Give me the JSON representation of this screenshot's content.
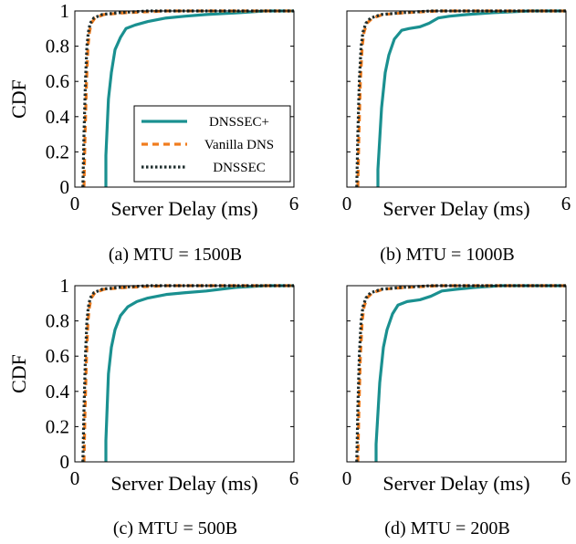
{
  "legend": {
    "placement": "lower-right of first panel",
    "entries": [
      {
        "label": "DNSSEC+",
        "color": "#1a9090",
        "style": "solid"
      },
      {
        "label": "Vanilla DNS",
        "color": "#f07c1e",
        "style": "dashed"
      },
      {
        "label": "DNSSEC",
        "color": "#1f2e2e",
        "style": "dotted"
      }
    ]
  },
  "chart_data": [
    {
      "type": "line",
      "caption": "(a) MTU = 1500B",
      "xlabel": "Server Delay (ms)",
      "ylabel": "CDF",
      "xlim": [
        0,
        6
      ],
      "ylim": [
        0,
        1
      ],
      "x_ticks": [
        "0",
        "6"
      ],
      "y_ticks": [
        "0",
        "0.2",
        "0.4",
        "0.6",
        "0.8",
        "1"
      ],
      "series": [
        {
          "name": "DNSSEC+",
          "x": [
            0.85,
            0.85,
            0.92,
            1.0,
            1.1,
            1.25,
            1.4,
            1.65,
            2.0,
            2.5,
            3.0,
            3.6,
            4.5,
            5.2,
            6.0
          ],
          "y": [
            0,
            0.18,
            0.5,
            0.65,
            0.78,
            0.85,
            0.9,
            0.92,
            0.94,
            0.96,
            0.97,
            0.98,
            0.99,
            1.0,
            1.0
          ]
        },
        {
          "name": "Vanilla DNS",
          "x": [
            0.25,
            0.28,
            0.32,
            0.36,
            0.4,
            0.45,
            0.55,
            0.8,
            1.4,
            2.5,
            6.0
          ],
          "y": [
            0,
            0.3,
            0.6,
            0.8,
            0.88,
            0.93,
            0.96,
            0.98,
            0.99,
            1.0,
            1.0
          ]
        },
        {
          "name": "DNSSEC",
          "x": [
            0.22,
            0.25,
            0.29,
            0.33,
            0.37,
            0.42,
            0.52,
            0.75,
            1.2,
            2.0,
            6.0
          ],
          "y": [
            0,
            0.3,
            0.6,
            0.8,
            0.88,
            0.93,
            0.96,
            0.98,
            0.99,
            1.0,
            1.0
          ]
        }
      ]
    },
    {
      "type": "line",
      "caption": "(b) MTU = 1000B",
      "xlabel": "Server Delay (ms)",
      "ylabel": "",
      "xlim": [
        0,
        6
      ],
      "ylim": [
        0,
        1
      ],
      "x_ticks": [
        "0",
        "6"
      ],
      "y_ticks": [],
      "series": [
        {
          "name": "DNSSEC+",
          "x": [
            0.85,
            0.85,
            0.95,
            1.05,
            1.15,
            1.3,
            1.5,
            1.7,
            2.0,
            2.25,
            2.5,
            2.8,
            3.3,
            4.0,
            5.0,
            6.0
          ],
          "y": [
            0,
            0.1,
            0.45,
            0.65,
            0.75,
            0.84,
            0.89,
            0.9,
            0.91,
            0.93,
            0.96,
            0.97,
            0.98,
            0.99,
            1.0,
            1.0
          ]
        },
        {
          "name": "Vanilla DNS",
          "x": [
            0.3,
            0.33,
            0.37,
            0.42,
            0.47,
            0.55,
            0.7,
            1.0,
            1.6,
            2.5,
            6.0
          ],
          "y": [
            0,
            0.3,
            0.6,
            0.8,
            0.88,
            0.93,
            0.96,
            0.98,
            0.99,
            1.0,
            1.0
          ]
        },
        {
          "name": "DNSSEC",
          "x": [
            0.27,
            0.3,
            0.34,
            0.39,
            0.44,
            0.52,
            0.65,
            0.95,
            1.5,
            2.3,
            6.0
          ],
          "y": [
            0,
            0.3,
            0.6,
            0.8,
            0.88,
            0.93,
            0.96,
            0.98,
            0.99,
            1.0,
            1.0
          ]
        }
      ]
    },
    {
      "type": "line",
      "caption": "(c) MTU = 500B",
      "xlabel": "Server Delay (ms)",
      "ylabel": "CDF",
      "xlim": [
        0,
        6
      ],
      "ylim": [
        0,
        1
      ],
      "x_ticks": [
        "0",
        "6"
      ],
      "y_ticks": [
        "0",
        "0.2",
        "0.4",
        "0.6",
        "0.8",
        "1"
      ],
      "series": [
        {
          "name": "DNSSEC+",
          "x": [
            0.85,
            0.85,
            0.92,
            1.0,
            1.1,
            1.25,
            1.45,
            1.7,
            2.0,
            2.5,
            3.0,
            3.6,
            4.4,
            5.2,
            6.0
          ],
          "y": [
            0,
            0.12,
            0.5,
            0.65,
            0.75,
            0.83,
            0.88,
            0.91,
            0.93,
            0.95,
            0.96,
            0.97,
            0.99,
            1.0,
            1.0
          ]
        },
        {
          "name": "Vanilla DNS",
          "x": [
            0.25,
            0.28,
            0.32,
            0.36,
            0.4,
            0.45,
            0.55,
            0.8,
            1.4,
            2.5,
            6.0
          ],
          "y": [
            0,
            0.3,
            0.6,
            0.8,
            0.88,
            0.93,
            0.96,
            0.98,
            0.99,
            1.0,
            1.0
          ]
        },
        {
          "name": "DNSSEC",
          "x": [
            0.22,
            0.25,
            0.29,
            0.33,
            0.37,
            0.42,
            0.52,
            0.75,
            1.2,
            2.0,
            6.0
          ],
          "y": [
            0,
            0.3,
            0.6,
            0.8,
            0.88,
            0.93,
            0.96,
            0.98,
            0.99,
            1.0,
            1.0
          ]
        }
      ]
    },
    {
      "type": "line",
      "caption": "(d) MTU = 200B",
      "xlabel": "Server Delay (ms)",
      "ylabel": "",
      "xlim": [
        0,
        6
      ],
      "ylim": [
        0,
        1
      ],
      "x_ticks": [
        "0",
        "6"
      ],
      "y_ticks": [],
      "series": [
        {
          "name": "DNSSEC+",
          "x": [
            0.8,
            0.8,
            0.9,
            1.0,
            1.1,
            1.25,
            1.4,
            1.65,
            2.0,
            2.3,
            2.6,
            3.0,
            3.5,
            4.2,
            5.0,
            6.0
          ],
          "y": [
            0,
            0.1,
            0.45,
            0.65,
            0.75,
            0.84,
            0.89,
            0.91,
            0.92,
            0.94,
            0.97,
            0.98,
            0.99,
            1.0,
            1.0,
            1.0
          ]
        },
        {
          "name": "Vanilla DNS",
          "x": [
            0.3,
            0.33,
            0.37,
            0.42,
            0.47,
            0.55,
            0.7,
            1.0,
            1.6,
            2.5,
            6.0
          ],
          "y": [
            0,
            0.3,
            0.6,
            0.8,
            0.88,
            0.93,
            0.96,
            0.98,
            0.99,
            1.0,
            1.0
          ]
        },
        {
          "name": "DNSSEC",
          "x": [
            0.27,
            0.3,
            0.34,
            0.39,
            0.44,
            0.52,
            0.65,
            0.95,
            1.5,
            2.3,
            6.0
          ],
          "y": [
            0,
            0.3,
            0.6,
            0.8,
            0.88,
            0.93,
            0.96,
            0.98,
            0.99,
            1.0,
            1.0
          ]
        }
      ]
    }
  ]
}
